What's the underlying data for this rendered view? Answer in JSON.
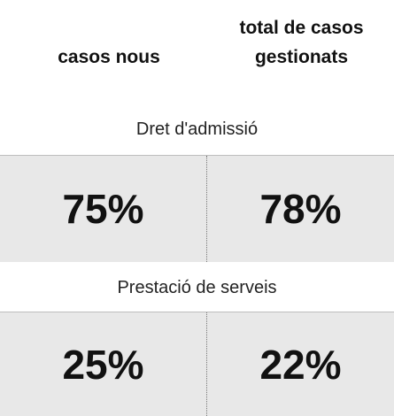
{
  "header": {
    "col1": "casos nous",
    "col2": "total de casos gestionats"
  },
  "sections": [
    {
      "label": "Dret d'admissió",
      "values": [
        "75%",
        "78%"
      ]
    },
    {
      "label": "Prestació de serveis",
      "values": [
        "25%",
        "22%"
      ]
    }
  ]
}
